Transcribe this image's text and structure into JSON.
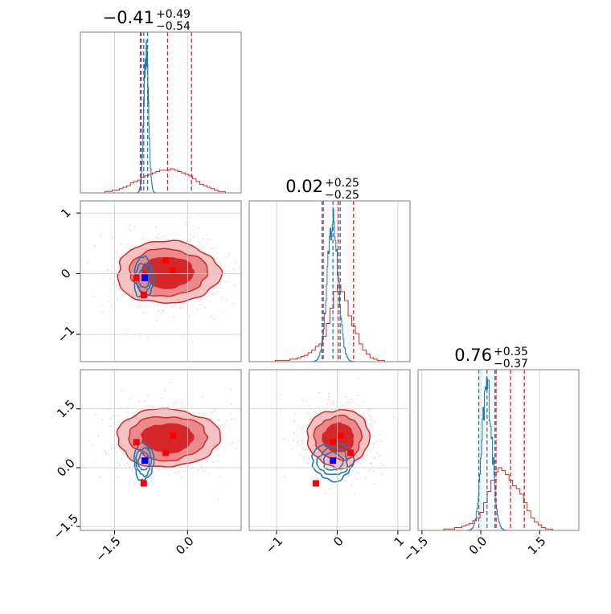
{
  "colors": {
    "primary": "#d62728",
    "secondary": "#1f77b4",
    "fill_outer": "#f4c3c4",
    "fill_mid": "#ea8a8c",
    "fill_inner": "#d62728",
    "grid": "#cccccc",
    "frame": "#808080",
    "marker_red": "#ff0000",
    "marker_blue": "#0000ff"
  },
  "chart_data": {
    "type": "corner",
    "grid": true,
    "parameters": [
      {
        "title": {
          "value": "0.41",
          "sign": "−",
          "plus": "+0.49",
          "minus": "−0.54"
        },
        "range": [
          -2.2,
          1.1
        ],
        "ticks": [
          -1.5,
          0.0
        ],
        "tick_labels": [
          "−1.5",
          "0.0"
        ],
        "quantiles_primary": [
          -0.95,
          -0.41,
          0.08
        ],
        "quantiles_secondary": [
          -0.97,
          -0.9,
          -0.82
        ]
      },
      {
        "title": {
          "value": "0.02",
          "sign": "",
          "plus": "+0.25",
          "minus": "−0.25"
        },
        "range": [
          -1.45,
          1.2
        ],
        "ticks": [
          -1,
          0,
          1
        ],
        "tick_labels": [
          "−1",
          "0",
          "1"
        ],
        "quantiles_primary": [
          -0.23,
          0.02,
          0.27
        ],
        "quantiles_secondary": [
          -0.25,
          -0.07,
          0.05
        ]
      },
      {
        "title": {
          "value": "0.76",
          "sign": "",
          "plus": "+0.35",
          "minus": "−0.37"
        },
        "range": [
          -1.6,
          2.5
        ],
        "ticks": [
          -1.5,
          0.0,
          1.5
        ],
        "tick_labels": [
          "−1.5",
          "0.0",
          "1.5"
        ],
        "quantiles_primary": [
          0.39,
          0.76,
          1.11
        ],
        "quantiles_secondary": [
          -0.05,
          0.16,
          0.36
        ]
      }
    ],
    "markers": {
      "red_points": [
        {
          "p0": -0.9,
          "p1": -0.35,
          "p2": -0.4
        },
        {
          "p0": -1.05,
          "p1": -0.07,
          "p2": 0.65
        },
        {
          "p0": -0.45,
          "p1": 0.22,
          "p2": 0.38
        },
        {
          "p0": -0.3,
          "p1": 0.05,
          "p2": 0.82
        }
      ],
      "blue_point": {
        "p0": -0.88,
        "p1": -0.07,
        "p2": 0.18
      }
    },
    "histograms": {
      "p0": {
        "bins": [
          -2.0,
          1.0
        ],
        "primary": [
          0,
          0,
          0,
          0,
          1,
          1,
          2,
          2,
          3,
          4,
          5,
          7,
          8,
          9,
          11,
          12,
          13,
          14,
          15,
          16,
          16,
          16,
          17,
          16,
          15,
          14,
          13,
          12,
          10,
          8,
          6,
          5,
          4,
          3,
          2,
          1,
          1,
          0,
          0,
          0
        ],
        "secondary_center": -0.85,
        "secondary_width": 0.05,
        "secondary_peak": 180
      },
      "p1": {
        "bins": [
          -1.2,
          1.2
        ],
        "primary": [
          0,
          0,
          0,
          1,
          1,
          1,
          1,
          2,
          2,
          3,
          4,
          5,
          7,
          9,
          12,
          14,
          20,
          30,
          42,
          55,
          60,
          55,
          48,
          36,
          28,
          22,
          14,
          9,
          6,
          3,
          2,
          1,
          1,
          0,
          0,
          0,
          0,
          0,
          0,
          0
        ],
        "secondary_center": -0.07,
        "secondary_width": 0.09,
        "secondary_peak": 165
      },
      "p2": {
        "bins": [
          -1.5,
          2.2
        ],
        "primary": [
          0,
          0,
          0,
          0,
          0,
          0,
          1,
          1,
          1,
          2,
          2,
          3,
          4,
          5,
          7,
          9,
          13,
          20,
          28,
          36,
          42,
          45,
          43,
          40,
          36,
          32,
          30,
          26,
          20,
          14,
          9,
          6,
          4,
          2,
          1,
          1,
          0,
          0,
          0,
          0
        ],
        "secondary_center": 0.16,
        "secondary_width": 0.13,
        "secondary_peak": 150
      }
    }
  }
}
